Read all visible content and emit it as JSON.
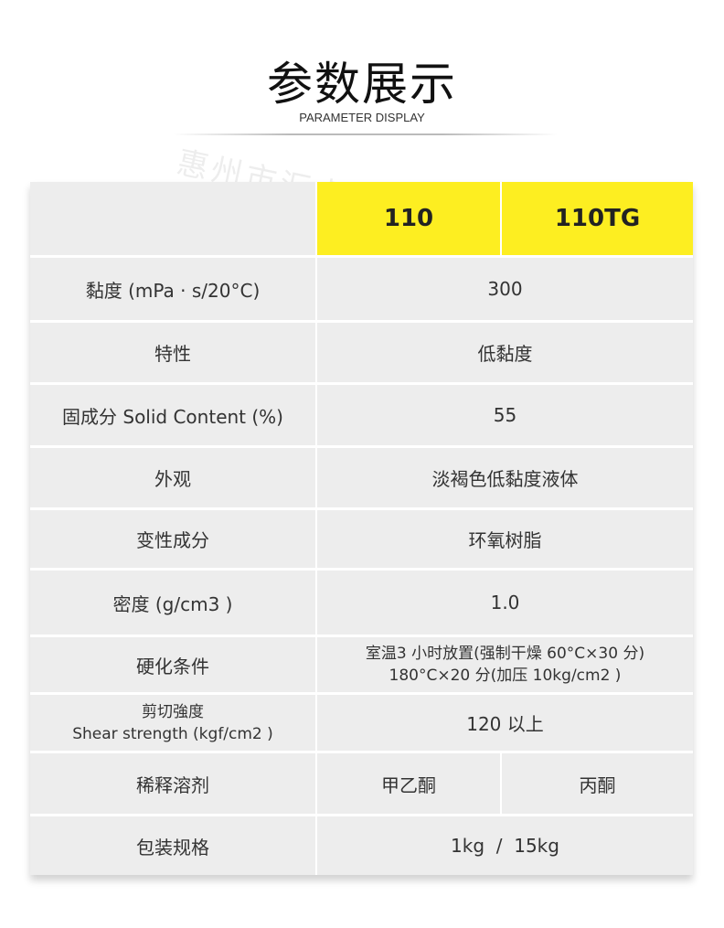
{
  "header": {
    "title": "参数展示",
    "subtitle": "PARAMETER DISPLAY",
    "watermark": "惠州市汇卓泰实业有限公司 HUIZHOU HUOZHITAI INDUSTRIAL CO.,LTD"
  },
  "colors": {
    "accent": "#fdee21",
    "cell_bg": "#ededed"
  },
  "table": {
    "columns": [
      "",
      "110",
      "110TG"
    ],
    "rows": [
      {
        "label": "黏度 (mPa · s/20°C)",
        "value": "300"
      },
      {
        "label": "特性",
        "value": "低黏度"
      },
      {
        "label": "固成分 Solid Content (%)",
        "value": "55"
      },
      {
        "label": "外观",
        "value": "淡褐色低黏度液体"
      },
      {
        "label": "变性成分",
        "value": "环氧树脂"
      },
      {
        "label": "密度 (g/cm3 )",
        "value": "1.0"
      },
      {
        "label": "硬化条件",
        "value_lines": [
          "室温3 小时放置(强制干燥 60°C×30 分)",
          "180°C×20 分(加压 10kg/cm2 )"
        ]
      },
      {
        "label_lines": [
          "剪切強度",
          "Shear strength (kgf/cm2 )"
        ],
        "value": "120 以上"
      },
      {
        "label": "稀释溶剂",
        "values": [
          "甲乙酮",
          "丙酮"
        ]
      },
      {
        "label": "包装规格",
        "value": "1kg  /  15kg"
      }
    ]
  }
}
